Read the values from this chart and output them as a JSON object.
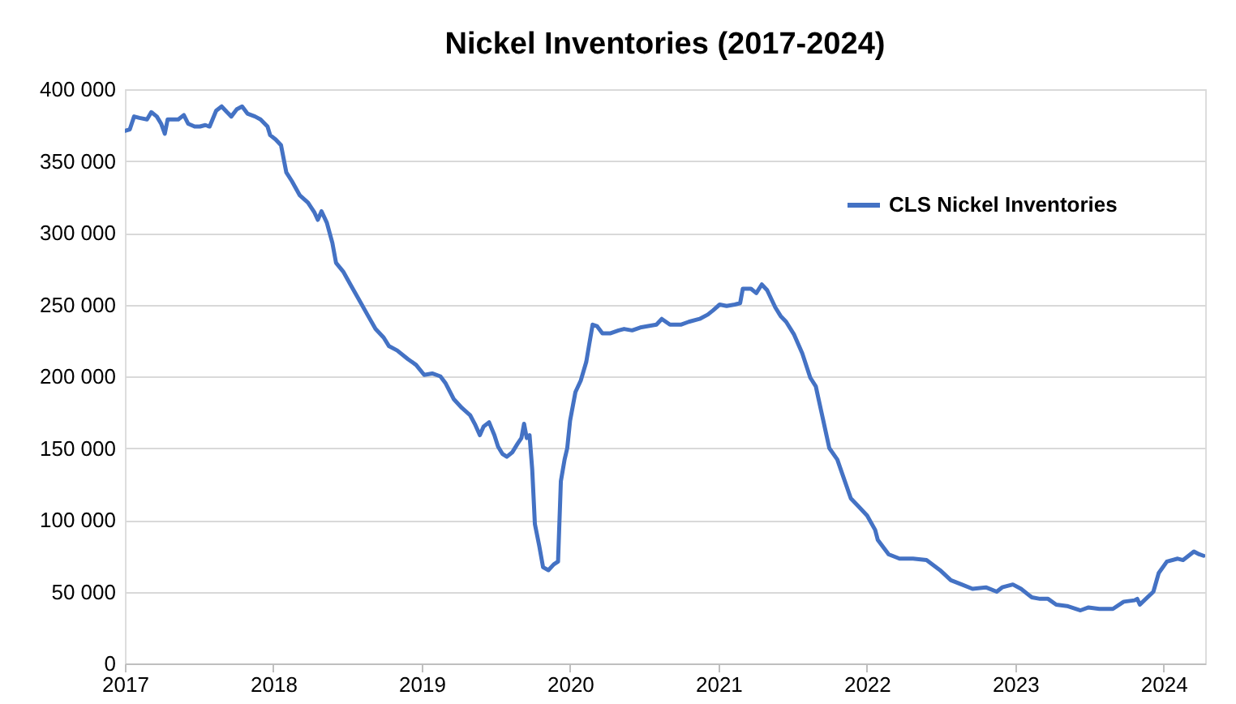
{
  "chart_data": {
    "type": "line",
    "title": "Nickel Inventories (2017-2024)",
    "xlim": [
      2017,
      2024.28
    ],
    "xticks": [
      2017,
      2018,
      2019,
      2020,
      2021,
      2022,
      2023,
      2024
    ],
    "ylim": [
      0,
      400000
    ],
    "yticks": [
      {
        "value": 0,
        "label": "0"
      },
      {
        "value": 50000,
        "label": "50 000"
      },
      {
        "value": 100000,
        "label": "100 000"
      },
      {
        "value": 150000,
        "label": "150 000"
      },
      {
        "value": 200000,
        "label": "200 000"
      },
      {
        "value": 250000,
        "label": "250 000"
      },
      {
        "value": 300000,
        "label": "300 000"
      },
      {
        "value": 350000,
        "label": "350 000"
      },
      {
        "value": 400000,
        "label": "400 000"
      }
    ],
    "grid": "y",
    "legend": "top right",
    "marker": "none",
    "line_style": "solid",
    "series": [
      {
        "name": "CLS Nickel Inventories",
        "color": "#4472c4",
        "x": [
          2017.0,
          2017.033,
          2017.062,
          2017.098,
          2017.149,
          2017.178,
          2017.215,
          2017.244,
          2017.269,
          2017.288,
          2017.324,
          2017.36,
          2017.397,
          2017.426,
          2017.47,
          2017.506,
          2017.542,
          2017.571,
          2017.615,
          2017.652,
          2017.688,
          2017.717,
          2017.754,
          2017.79,
          2017.826,
          2017.877,
          2017.914,
          2017.961,
          2017.979,
          2018.016,
          2018.052,
          2018.088,
          2018.125,
          2018.179,
          2018.234,
          2018.278,
          2018.3,
          2018.325,
          2018.361,
          2018.398,
          2018.423,
          2018.471,
          2018.525,
          2018.58,
          2018.634,
          2018.689,
          2018.744,
          2018.78,
          2018.835,
          2018.907,
          2018.962,
          2019.017,
          2019.071,
          2019.126,
          2019.162,
          2019.217,
          2019.271,
          2019.326,
          2019.362,
          2019.392,
          2019.417,
          2019.454,
          2019.49,
          2019.515,
          2019.544,
          2019.574,
          2019.61,
          2019.646,
          2019.672,
          2019.69,
          2019.708,
          2019.727,
          2019.745,
          2019.763,
          2019.792,
          2019.818,
          2019.854,
          2019.89,
          2019.919,
          2019.938,
          2019.963,
          2019.981,
          2020.0,
          2020.036,
          2020.072,
          2020.109,
          2020.127,
          2020.152,
          2020.181,
          2020.218,
          2020.273,
          2020.327,
          2020.364,
          2020.418,
          2020.473,
          2020.527,
          2020.582,
          2020.618,
          2020.673,
          2020.746,
          2020.8,
          2020.873,
          2020.928,
          2020.964,
          2021.008,
          2021.055,
          2021.11,
          2021.146,
          2021.164,
          2021.219,
          2021.255,
          2021.292,
          2021.328,
          2021.383,
          2021.419,
          2021.456,
          2021.51,
          2021.565,
          2021.619,
          2021.656,
          2021.692,
          2021.747,
          2021.801,
          2021.838,
          2021.892,
          2021.947,
          2022.002,
          2022.056,
          2022.074,
          2022.147,
          2022.22,
          2022.311,
          2022.402,
          2022.493,
          2022.566,
          2022.639,
          2022.712,
          2022.802,
          2022.875,
          2022.912,
          2022.984,
          2023.039,
          2023.112,
          2023.167,
          2023.221,
          2023.276,
          2023.349,
          2023.44,
          2023.494,
          2023.567,
          2023.658,
          2023.731,
          2023.804,
          2023.822,
          2023.84,
          2023.931,
          2023.967,
          2024.022,
          2024.095,
          2024.131,
          2024.168,
          2024.204,
          2024.24,
          2024.269
        ],
        "values": [
          371000,
          372000,
          381000,
          380000,
          379000,
          384000,
          381000,
          376000,
          369000,
          379000,
          379000,
          379000,
          382000,
          376000,
          374000,
          374000,
          375000,
          374000,
          385000,
          388000,
          384000,
          381000,
          386000,
          388000,
          383000,
          381000,
          379000,
          374000,
          368000,
          365000,
          361000,
          342000,
          336000,
          326000,
          321000,
          314000,
          309000,
          315000,
          307000,
          293000,
          279000,
          273000,
          263000,
          253000,
          243000,
          233000,
          227000,
          221000,
          218000,
          212000,
          208000,
          201000,
          202000,
          200000,
          195000,
          184000,
          178000,
          173000,
          166000,
          159000,
          165000,
          168000,
          159000,
          151000,
          146000,
          144000,
          147000,
          153000,
          157000,
          167000,
          157000,
          159000,
          135000,
          97000,
          82000,
          67000,
          65000,
          69000,
          71000,
          127000,
          142000,
          150000,
          169000,
          189000,
          197000,
          210000,
          221000,
          236000,
          235000,
          230000,
          230000,
          232000,
          233000,
          232000,
          234000,
          235000,
          236000,
          240000,
          236000,
          236000,
          238000,
          240000,
          243000,
          246000,
          250000,
          249000,
          250000,
          251000,
          261000,
          261000,
          258000,
          264000,
          260000,
          248000,
          242000,
          238000,
          229000,
          216000,
          199000,
          193000,
          176000,
          150000,
          142000,
          131000,
          115000,
          109000,
          103000,
          93000,
          86000,
          76000,
          73000,
          73000,
          72000,
          65000,
          58000,
          55000,
          52000,
          53000,
          50000,
          53000,
          55000,
          52000,
          46000,
          45000,
          45000,
          41000,
          40000,
          37000,
          39000,
          38000,
          38000,
          43000,
          44000,
          45000,
          41000,
          50000,
          63000,
          71000,
          73000,
          72000,
          75000,
          78000,
          76000,
          75000
        ]
      }
    ]
  }
}
